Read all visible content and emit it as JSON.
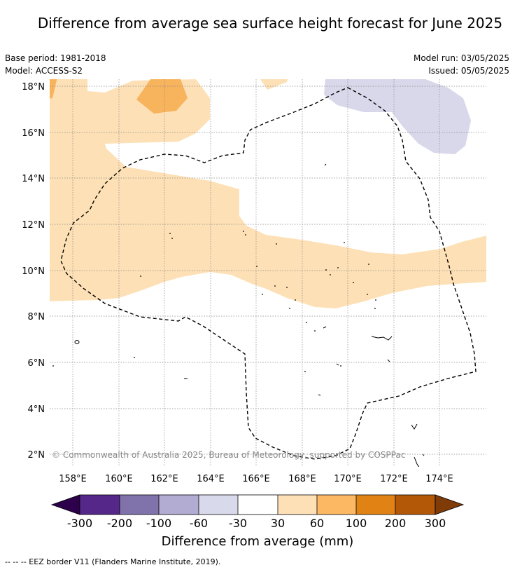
{
  "title": "Difference from average sea surface height forecast for June 2025",
  "info": {
    "base_period": "Base period: 1981-2018",
    "model": "Model: ACCESS-S2",
    "model_run": "Model run: 03/05/2025",
    "issued": "Issued: 05/05/2025"
  },
  "map": {
    "lat_labels": [
      "18°N",
      "16°N",
      "14°N",
      "12°N",
      "10°N",
      "8°N",
      "6°N",
      "4°N",
      "2°N"
    ],
    "lon_labels": [
      "158°E",
      "160°E",
      "162°E",
      "164°E",
      "166°E",
      "168°E",
      "170°E",
      "172°E",
      "174°E"
    ],
    "copyright": "© Commonwealth of Australia 2025, Bureau of Meteorology, supported by COSPPac",
    "anomaly_colors": {
      "30_60": "#fde0b5",
      "60_100": "#f8b35d",
      "minus60_minus30": "#d8d8ea"
    }
  },
  "colorbar": {
    "tick_labels": [
      "-300",
      "-200",
      "-100",
      "-60",
      "-30",
      "30",
      "60",
      "100",
      "200",
      "300"
    ],
    "colors": [
      "#2d004b",
      "#542788",
      "#8073ac",
      "#b2abd2",
      "#d8daeb",
      "#ffffff",
      "#fee0b6",
      "#fdb863",
      "#e08214",
      "#b35806",
      "#7f3b08"
    ],
    "label": "Difference from average (mm)"
  },
  "footer": "--  --  -- EEZ border V11 (Flanders Marine Institute, 2019)."
}
